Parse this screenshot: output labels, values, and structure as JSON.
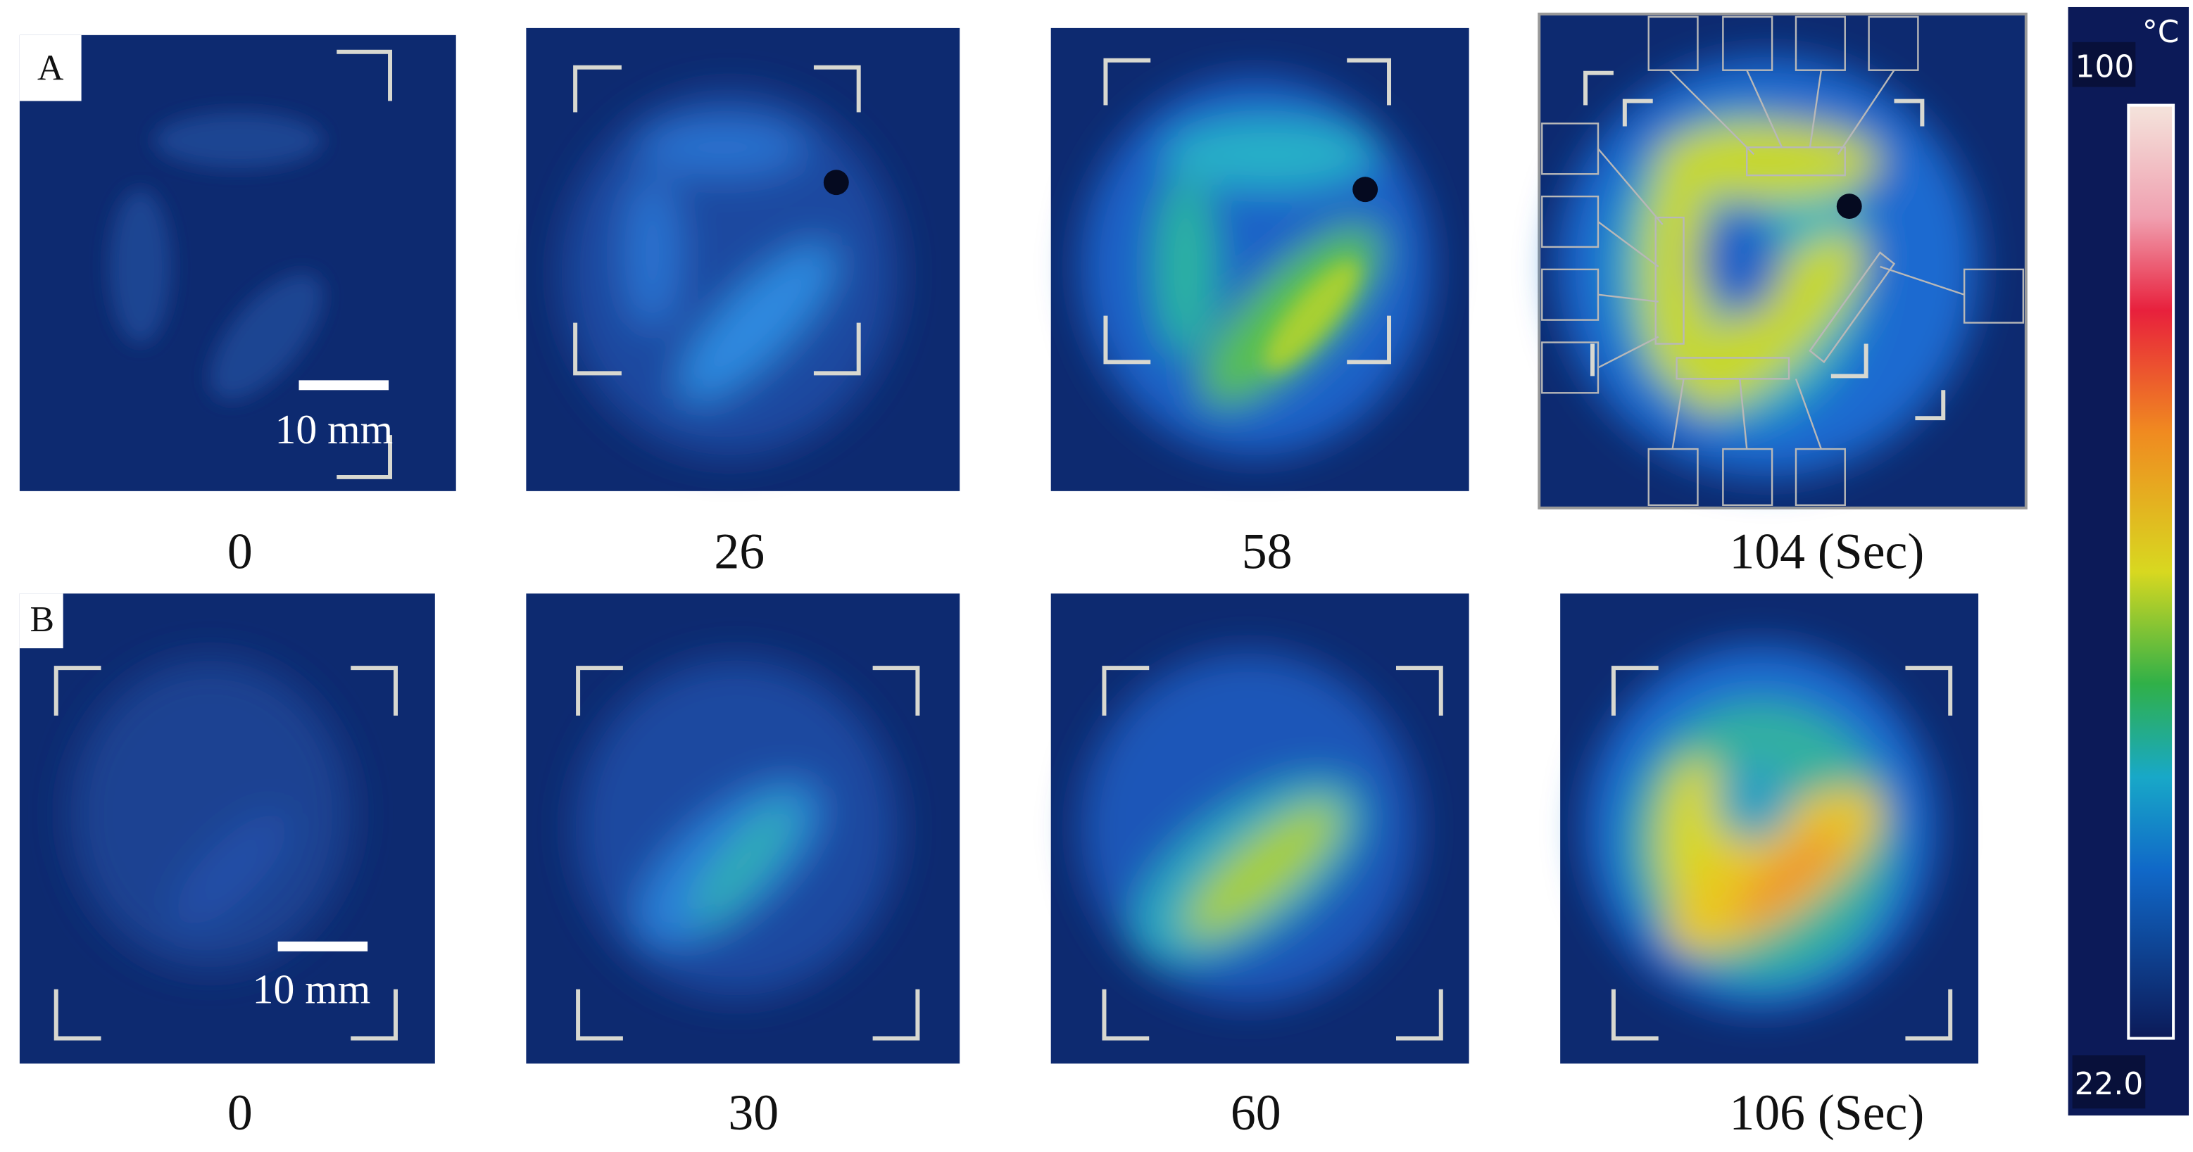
{
  "panels": [
    {
      "label": "A",
      "scale_bar": "10 mm",
      "images": [
        {
          "time": "0"
        },
        {
          "time": "26"
        },
        {
          "time": "58"
        },
        {
          "time": "104 (Sec)"
        }
      ]
    },
    {
      "label": "B",
      "scale_bar": "10 mm",
      "images": [
        {
          "time": "0"
        },
        {
          "time": "30"
        },
        {
          "time": "60"
        },
        {
          "time": "106 (Sec)"
        }
      ]
    }
  ],
  "colorbar": {
    "unit": "°C",
    "max": "100",
    "min": "22.0"
  }
}
